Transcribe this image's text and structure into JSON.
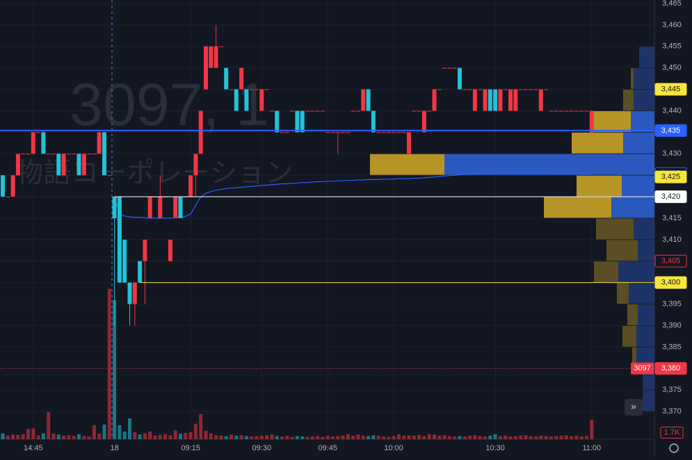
{
  "chart_data": {
    "type": "candlestick",
    "watermark": {
      "symbol": "3097, 1",
      "name": "物語コーポレーション"
    },
    "categories": [
      null,
      null,
      null,
      null,
      null,
      null,
      "14:45",
      null,
      null,
      null,
      null,
      null,
      null,
      null,
      null,
      null,
      null,
      null,
      null,
      null,
      null,
      null,
      "18",
      null,
      null,
      null,
      null,
      null,
      null,
      null,
      null,
      null,
      null,
      null,
      null,
      null,
      null,
      "09:15",
      null,
      null,
      null,
      null,
      null,
      null,
      null,
      null,
      null,
      null,
      null,
      null,
      null,
      "09:30",
      null,
      null,
      null,
      null,
      null,
      null,
      null,
      null,
      null,
      null,
      null,
      null,
      "09:45",
      null,
      null,
      null,
      null,
      null,
      null,
      null,
      null,
      null,
      null,
      null,
      null,
      "10:00",
      null,
      null,
      null,
      null,
      null,
      null,
      null,
      null,
      null,
      null,
      null,
      null,
      null,
      null,
      null,
      null,
      null,
      null,
      null,
      "10:30",
      null,
      null,
      null,
      null,
      null,
      null,
      null,
      null,
      null,
      null,
      null,
      null,
      null,
      null,
      null,
      null,
      null,
      null,
      "11:00"
    ],
    "open": [
      3425,
      3420,
      3420,
      3425,
      3430,
      3430,
      3430,
      3435,
      3435,
      3430,
      3430,
      3430,
      3425,
      3430,
      3430,
      3430,
      3425,
      3430,
      3430,
      3430,
      3435,
      3425,
      3420,
      3420,
      3410,
      3400,
      3395,
      3405,
      3405,
      3415,
      3420,
      3415,
      3420,
      3405,
      3415,
      3420,
      3420,
      3420,
      3425,
      3430,
      3445,
      3450,
      3450,
      3455,
      3450,
      3445,
      3445,
      3445,
      3445,
      3445,
      3445,
      3440,
      3445,
      3440,
      3440,
      3435,
      3435,
      3440,
      3440,
      3440,
      3440,
      3440,
      3440,
      3440,
      3435,
      3435,
      3435,
      3435,
      3435,
      3440,
      3440,
      3440,
      3445,
      3440,
      3435,
      3435,
      3435,
      3435,
      3435,
      3435,
      3430,
      3440,
      3440,
      3435,
      3440,
      3440,
      3445,
      3450,
      3450,
      3450,
      3450,
      3445,
      3445,
      3440,
      3445,
      3440,
      3445,
      3445,
      3440,
      3445,
      3440,
      3440,
      3445,
      3445,
      3445,
      3445,
      3440,
      3445,
      3440,
      3440,
      3440,
      3440,
      3440,
      3440,
      3440,
      3440,
      3435
    ],
    "high": [
      3425,
      3420,
      3425,
      3430,
      3430,
      3430,
      3435,
      3435,
      3435,
      3430,
      3430,
      3430,
      3430,
      3430,
      3430,
      3430,
      3430,
      3430,
      3430,
      3435,
      3435,
      3425,
      3420,
      3420,
      3410,
      3400,
      3400,
      3405,
      3410,
      3420,
      3420,
      3425,
      3420,
      3410,
      3420,
      3420,
      3420,
      3425,
      3430,
      3440,
      3455,
      3455,
      3460,
      3455,
      3450,
      3445,
      3445,
      3450,
      3445,
      3445,
      3445,
      3445,
      3445,
      3440,
      3440,
      3435,
      3435,
      3440,
      3440,
      3440,
      3440,
      3440,
      3440,
      3440,
      3435,
      3435,
      3435,
      3435,
      3435,
      3440,
      3440,
      3445,
      3445,
      3440,
      3435,
      3435,
      3435,
      3435,
      3435,
      3435,
      3435,
      3440,
      3440,
      3440,
      3440,
      3445,
      3445,
      3450,
      3450,
      3450,
      3450,
      3445,
      3445,
      3445,
      3445,
      3445,
      3445,
      3445,
      3445,
      3445,
      3445,
      3445,
      3445,
      3445,
      3445,
      3445,
      3445,
      3445,
      3440,
      3440,
      3440,
      3440,
      3440,
      3440,
      3440,
      3440,
      3440
    ],
    "low": [
      3420,
      3420,
      3420,
      3425,
      3430,
      3430,
      3430,
      3435,
      3430,
      3430,
      3430,
      3425,
      3425,
      3430,
      3430,
      3425,
      3425,
      3430,
      3430,
      3430,
      3425,
      3425,
      3390,
      3400,
      3400,
      3390,
      3390,
      3400,
      3395,
      3415,
      3420,
      3415,
      3420,
      3405,
      3415,
      3415,
      3420,
      3420,
      3420,
      3430,
      3445,
      3450,
      3450,
      3455,
      3445,
      3445,
      3440,
      3445,
      3440,
      3445,
      3445,
      3440,
      3445,
      3440,
      3435,
      3435,
      3435,
      3440,
      3435,
      3435,
      3440,
      3440,
      3440,
      3440,
      3435,
      3435,
      3430,
      3435,
      3435,
      3440,
      3440,
      3440,
      3440,
      3435,
      3435,
      3435,
      3435,
      3435,
      3435,
      3435,
      3430,
      3440,
      3440,
      3435,
      3440,
      3440,
      3445,
      3450,
      3450,
      3450,
      3445,
      3445,
      3445,
      3440,
      3445,
      3440,
      3440,
      3440,
      3440,
      3445,
      3440,
      3440,
      3445,
      3445,
      3445,
      3445,
      3440,
      3445,
      3440,
      3440,
      3440,
      3440,
      3440,
      3440,
      3440,
      3440,
      3435
    ],
    "close": [
      3420,
      3420,
      3425,
      3430,
      3430,
      3430,
      3435,
      3435,
      3430,
      3430,
      3430,
      3425,
      3430,
      3430,
      3430,
      3425,
      3430,
      3430,
      3430,
      3435,
      3425,
      3425,
      3415,
      3400,
      3400,
      3395,
      3400,
      3400,
      3410,
      3420,
      3420,
      3420,
      3420,
      3410,
      3420,
      3415,
      3420,
      3425,
      3430,
      3440,
      3455,
      3455,
      3455,
      3455,
      3445,
      3445,
      3440,
      3450,
      3440,
      3445,
      3445,
      3445,
      3445,
      3440,
      3435,
      3435,
      3435,
      3440,
      3435,
      3435,
      3440,
      3440,
      3440,
      3440,
      3435,
      3435,
      3435,
      3435,
      3435,
      3440,
      3440,
      3445,
      3440,
      3435,
      3435,
      3435,
      3435,
      3435,
      3435,
      3435,
      3435,
      3440,
      3440,
      3440,
      3440,
      3445,
      3445,
      3450,
      3450,
      3450,
      3445,
      3445,
      3445,
      3445,
      3445,
      3445,
      3440,
      3440,
      3445,
      3445,
      3445,
      3445,
      3445,
      3445,
      3445,
      3445,
      3445,
      3445,
      3440,
      3440,
      3440,
      3440,
      3440,
      3440,
      3440,
      3440,
      3440
    ],
    "volume": [
      1500,
      900,
      1200,
      1100,
      1300,
      2600,
      2800,
      1000,
      1500,
      7000,
      1400,
      1200,
      900,
      1000,
      900,
      1300,
      800,
      700,
      3600,
      1400,
      3800,
      39000,
      36000,
      3600,
      2000,
      5400,
      1800,
      1200,
      1500,
      2000,
      900,
      1100,
      1300,
      1000,
      2300,
      1400,
      1600,
      1800,
      4000,
      6500,
      2200,
      1500,
      1000,
      900,
      800,
      1200,
      900,
      1000,
      800,
      700,
      800,
      900,
      1000,
      1200,
      800,
      700,
      900,
      600,
      800,
      700,
      600,
      700,
      800,
      600,
      900,
      700,
      800,
      1000,
      1300,
      900,
      1200,
      900,
      800,
      1000,
      900,
      700,
      600,
      800,
      1300,
      900,
      1000,
      900,
      1100,
      800,
      1300,
      1200,
      900,
      1000,
      800,
      700,
      800,
      700,
      900,
      1000,
      800,
      700,
      900,
      1300,
      800,
      900,
      700,
      800,
      900,
      1000,
      800,
      700,
      900,
      800,
      700,
      800,
      900,
      1000,
      800,
      900,
      700,
      800,
      5000
    ],
    "vwap": [
      null,
      null,
      null,
      null,
      null,
      null,
      null,
      null,
      null,
      null,
      null,
      null,
      null,
      null,
      null,
      null,
      null,
      null,
      null,
      null,
      null,
      null,
      3420,
      3416,
      3415.5,
      3415.3,
      3415.2,
      3415.2,
      3415.1,
      3415,
      3415,
      3415,
      3415,
      3415,
      3415.1,
      3415.2,
      3415.4,
      3416,
      3418,
      3420,
      3420.8,
      3421.2,
      3421.5,
      3421.7,
      3421.9,
      3422,
      3422.1,
      3422.2,
      3422.3,
      3422.4,
      3422.5,
      3422.6,
      3422.7,
      3422.8,
      3422.9,
      3423,
      3423,
      3423.1,
      3423.2,
      3423.3,
      3423.3,
      3423.4,
      3423.5,
      3423.5,
      3423.6,
      3423.6,
      3423.7,
      3423.7,
      3423.8,
      3423.8,
      3423.9,
      3423.9,
      3424,
      3424,
      3424,
      3424.1,
      3424.1,
      3424.1,
      3424.2,
      3424.2,
      3424.2,
      3424.3,
      3424.3,
      3424.4,
      3424.5,
      3424.6,
      3424.7,
      3424.8,
      3424.9,
      3425,
      3425.1,
      3425.2,
      3425.3,
      3425.3,
      3425.4,
      3425.4,
      3425.5,
      3425.5,
      3425.5,
      3425.6,
      3425.6,
      3425.6,
      3425.6,
      3425.6,
      3425.6,
      3425.6,
      3425.6,
      3425.5,
      3425.5,
      3425.5,
      3425.5,
      3425.4,
      3425.4,
      3425.4,
      3425.4,
      3425.3,
      3425.3
    ],
    "up_color": "#f23645",
    "down_color": "#22c3d6",
    "vwap_color": "#2962ff",
    "ylim": [
      3359.5,
      3465.8
    ],
    "yticks": [
      {
        "value": 3370,
        "label": "3,370"
      },
      {
        "value": 3375,
        "label": "3,375"
      },
      {
        "value": 3380,
        "label": "3,380"
      },
      {
        "value": 3385,
        "label": "3,385"
      },
      {
        "value": 3390,
        "label": "3,390"
      },
      {
        "value": 3395,
        "label": "3,395"
      },
      {
        "value": 3400,
        "label": "3,400"
      },
      {
        "value": 3405,
        "label": "3,405"
      },
      {
        "value": 3410,
        "label": "3,410"
      },
      {
        "value": 3415,
        "label": "3,415"
      },
      {
        "value": 3420,
        "label": "3,420"
      },
      {
        "value": 3425,
        "label": "3,425"
      },
      {
        "value": 3430,
        "label": "3,430"
      },
      {
        "value": 3435,
        "label": "3,435"
      },
      {
        "value": 3440,
        "label": "3,440"
      },
      {
        "value": 3445,
        "label": "3,445"
      },
      {
        "value": 3450,
        "label": "3,450"
      },
      {
        "value": 3455,
        "label": "3,455"
      },
      {
        "value": 3460,
        "label": "3,460"
      },
      {
        "value": 3465,
        "label": "3,465"
      }
    ],
    "volume_ylim": [
      0,
      40000
    ],
    "volume_ticks": [
      {
        "value": 1700,
        "label": "1.7K"
      }
    ],
    "grid": true,
    "profile": {
      "levels": [
        3450,
        3445,
        3440,
        3435,
        3430,
        3425,
        3420,
        3415,
        3410,
        3405,
        3400,
        3395,
        3390,
        3385,
        3380,
        3375,
        3370
      ],
      "up": [
        0,
        4,
        15,
        55,
        74,
        107,
        65,
        97,
        54,
        45,
        35,
        17,
        15,
        20,
        6,
        0,
        0
      ],
      "down": [
        22,
        30,
        30,
        34,
        45,
        302,
        47,
        62,
        30,
        24,
        52,
        37,
        24,
        26,
        26,
        17,
        17
      ],
      "xlim": [
        0,
        420
      ],
      "value_area": [
        3415,
        3440
      ],
      "up_color": "#c9a227",
      "down_color": "#2f5fd0"
    },
    "price_tags": [
      {
        "value": 3445,
        "label": "3,445",
        "style": "yellow"
      },
      {
        "value": 3435.4,
        "label": "3,435",
        "style": "blue",
        "line_from": 0
      },
      {
        "value": 3425.4,
        "label": "3,425",
        "style": "blue-outline"
      },
      {
        "value": 3424.6,
        "label": "3,425",
        "style": "yellow"
      },
      {
        "value": 3420,
        "label": "3,420",
        "style": "white",
        "line_from": 22
      },
      {
        "value": 3405,
        "label": "3,405",
        "style": "red-outline"
      },
      {
        "value": 3400,
        "label": "3,400",
        "style": "yellow",
        "line_from": 27
      },
      {
        "value": 3380,
        "label": "3,380",
        "style": "red",
        "line_from": 0
      }
    ],
    "symbol_tag": "3097"
  }
}
